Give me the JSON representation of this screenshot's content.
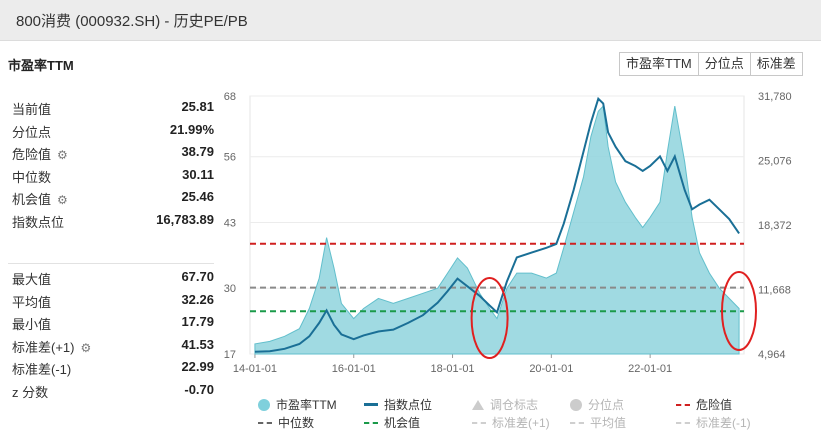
{
  "window": {
    "title": "800消费 (000932.SH) - 历史PE/PB"
  },
  "section_title": "市盈率TTM",
  "tabs": [
    "市盈率TTM",
    "分位点",
    "标准差"
  ],
  "stats_top": [
    {
      "label": "当前值",
      "value": "25.81",
      "gear": false
    },
    {
      "label": "分位点",
      "value": "21.99%",
      "gear": false
    },
    {
      "label": "危险值",
      "value": "38.79",
      "gear": true
    },
    {
      "label": "中位数",
      "value": "30.11",
      "gear": false
    },
    {
      "label": "机会值",
      "value": "25.46",
      "gear": true
    },
    {
      "label": "指数点位",
      "value": "16,783.89",
      "gear": false
    }
  ],
  "stats_bottom": [
    {
      "label": "最大值",
      "value": "67.70",
      "gear": false
    },
    {
      "label": "平均值",
      "value": "32.26",
      "gear": false
    },
    {
      "label": "最小值",
      "value": "17.79",
      "gear": false
    },
    {
      "label": "标准差(+1)",
      "value": "41.53",
      "gear": true
    },
    {
      "label": "标准差(-1)",
      "value": "22.99",
      "gear": false
    },
    {
      "label": "z 分数",
      "value": "-0.70",
      "gear": false
    }
  ],
  "legend": [
    {
      "label": "市盈率TTM",
      "kind": "dot",
      "color": "#7fd0dc",
      "dim": false
    },
    {
      "label": "指数点位",
      "kind": "line",
      "color": "#1a6f96",
      "dim": false
    },
    {
      "label": "调仓标志",
      "kind": "tri",
      "color": "#cccccc",
      "dim": true
    },
    {
      "label": "分位点",
      "kind": "dot",
      "color": "#cccccc",
      "dim": true
    },
    {
      "label": "危险值",
      "kind": "dash",
      "color": "#d02020",
      "dim": false
    },
    {
      "label": "中位数",
      "kind": "dash",
      "color": "#666666",
      "dim": false
    },
    {
      "label": "机会值",
      "kind": "dash",
      "color": "#1a9a4a",
      "dim": false
    },
    {
      "label": "标准差(+1)",
      "kind": "dashdim",
      "color": "#cfcfcf",
      "dim": true
    },
    {
      "label": "平均值",
      "kind": "dashdim",
      "color": "#cfcfcf",
      "dim": true
    },
    {
      "label": "标准差(-1)",
      "kind": "dashdim",
      "color": "#cfcfcf",
      "dim": true
    }
  ],
  "chart_data": {
    "type": "area",
    "x_ticks": [
      "14-01-01",
      "16-01-01",
      "18-01-01",
      "20-01-01",
      "22-01-01"
    ],
    "x_tick_years": [
      2014,
      2016,
      2018,
      2020,
      2022
    ],
    "x_range": [
      2013.9,
      2023.9
    ],
    "y_left_ticks": [
      17,
      30,
      43,
      56,
      68
    ],
    "y_left_range": [
      17,
      68
    ],
    "y_right_ticks": [
      "4,964",
      "11,668",
      "18,372",
      "25,076",
      "31,780"
    ],
    "y_right_values": [
      4964,
      11668,
      18372,
      25076,
      31780
    ],
    "y_right_range": [
      4964,
      31780
    ],
    "colors": {
      "pe_fill": "#8fd3dd",
      "pe_line": "#62bfcc",
      "index_line": "#1a6f96",
      "danger": "#d02020",
      "median": "#8a8a8a",
      "opportunity": "#1a9a4a",
      "highlight": "#e02020"
    },
    "reference_lines": {
      "danger": 38.79,
      "median": 30.11,
      "opportunity": 25.46
    },
    "series": [
      {
        "name": "市盈率TTM",
        "axis": "left",
        "x": [
          2014.0,
          2014.3,
          2014.6,
          2014.9,
          2015.1,
          2015.3,
          2015.45,
          2015.6,
          2015.75,
          2016.0,
          2016.2,
          2016.5,
          2016.8,
          2017.1,
          2017.4,
          2017.7,
          2017.9,
          2018.1,
          2018.3,
          2018.55,
          2018.75,
          2018.9,
          2019.1,
          2019.3,
          2019.6,
          2019.9,
          2020.1,
          2020.25,
          2020.45,
          2020.65,
          2020.8,
          2020.95,
          2021.05,
          2021.15,
          2021.3,
          2021.5,
          2021.7,
          2021.85,
          2022.0,
          2022.2,
          2022.35,
          2022.5,
          2022.7,
          2022.85,
          2023.0,
          2023.2,
          2023.4,
          2023.6,
          2023.8
        ],
        "values": [
          19,
          19.5,
          20.5,
          22,
          26,
          32,
          40,
          34,
          27,
          24,
          26,
          28,
          27,
          28,
          29,
          30,
          33,
          36,
          34,
          29,
          26,
          24,
          30,
          33,
          33,
          32,
          33,
          38,
          45,
          52,
          60,
          65,
          66,
          58,
          51,
          47,
          44,
          42,
          44,
          47,
          57,
          66,
          55,
          44,
          37,
          33,
          30,
          28,
          26
        ]
      },
      {
        "name": "指数点位",
        "axis": "right",
        "x": [
          2014.0,
          2014.3,
          2014.6,
          2014.9,
          2015.1,
          2015.3,
          2015.45,
          2015.6,
          2015.75,
          2016.0,
          2016.2,
          2016.5,
          2016.8,
          2017.1,
          2017.4,
          2017.7,
          2017.9,
          2018.1,
          2018.3,
          2018.55,
          2018.75,
          2018.9,
          2019.1,
          2019.3,
          2019.6,
          2019.9,
          2020.1,
          2020.25,
          2020.45,
          2020.65,
          2020.8,
          2020.95,
          2021.05,
          2021.15,
          2021.3,
          2021.5,
          2021.7,
          2021.85,
          2022.0,
          2022.2,
          2022.35,
          2022.5,
          2022.7,
          2022.85,
          2023.0,
          2023.2,
          2023.4,
          2023.6,
          2023.8
        ],
        "values": [
          5200,
          5250,
          5500,
          6000,
          6800,
          8200,
          9500,
          8000,
          7000,
          6500,
          6900,
          7300,
          7500,
          8200,
          9000,
          10300,
          11500,
          12800,
          12000,
          11000,
          10000,
          9300,
          12500,
          15000,
          15500,
          16000,
          16400,
          18500,
          22000,
          26000,
          29000,
          31500,
          31000,
          28000,
          26500,
          25000,
          24500,
          24000,
          24500,
          25500,
          24000,
          25500,
          22000,
          20000,
          20500,
          21000,
          20000,
          19000,
          17500
        ]
      }
    ]
  }
}
